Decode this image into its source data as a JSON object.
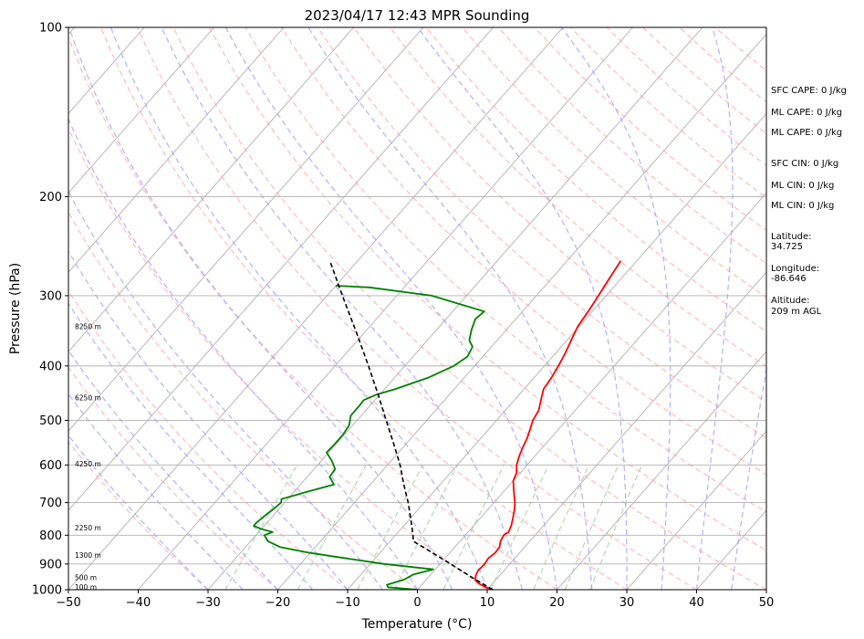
{
  "chart_data": {
    "type": "line",
    "chart_kind": "Skew-T log-P sounding",
    "title": "2023/04/17 12:43 MPR Sounding",
    "xlabel": "Temperature (°C)",
    "ylabel": "Pressure (hPa)",
    "xlim": [
      -50,
      50
    ],
    "ylim": [
      1000,
      100
    ],
    "y_scale": "log",
    "x_ticks": [
      -50,
      -40,
      -30,
      -20,
      -10,
      0,
      10,
      20,
      30,
      40,
      50
    ],
    "x_tick_labels": [
      "−50",
      "−40",
      "−30",
      "−20",
      "−10",
      "0",
      "10",
      "20",
      "30",
      "40",
      "50"
    ],
    "y_ticks": [
      1000,
      900,
      800,
      700,
      600,
      500,
      400,
      300,
      200,
      100
    ],
    "y_tick_labels": [
      "1000",
      "900",
      "800",
      "700",
      "600",
      "500",
      "400",
      "300",
      "200",
      "100"
    ],
    "series": [
      {
        "role": "temperature",
        "color": "#ff0000",
        "points": [
          [
            1000,
            10.8
          ],
          [
            990,
            9.5
          ],
          [
            975,
            8.0
          ],
          [
            960,
            7.0
          ],
          [
            940,
            6.5
          ],
          [
            925,
            6.3
          ],
          [
            900,
            6.4
          ],
          [
            880,
            6.2
          ],
          [
            860,
            6.5
          ],
          [
            840,
            6.4
          ],
          [
            820,
            5.8
          ],
          [
            800,
            5.5
          ],
          [
            790,
            5.8
          ],
          [
            770,
            5.4
          ],
          [
            750,
            4.8
          ],
          [
            720,
            3.8
          ],
          [
            700,
            3.0
          ],
          [
            680,
            2.0
          ],
          [
            660,
            1.0
          ],
          [
            640,
            0.0
          ],
          [
            620,
            -0.5
          ],
          [
            600,
            -1.5
          ],
          [
            580,
            -2.2
          ],
          [
            560,
            -2.8
          ],
          [
            540,
            -3.3
          ],
          [
            520,
            -4.0
          ],
          [
            500,
            -4.8
          ],
          [
            480,
            -5.2
          ],
          [
            460,
            -6.2
          ],
          [
            440,
            -7.2
          ],
          [
            420,
            -7.5
          ],
          [
            400,
            -8.0
          ],
          [
            380,
            -8.6
          ],
          [
            360,
            -9.4
          ],
          [
            340,
            -10.2
          ],
          [
            320,
            -10.6
          ],
          [
            300,
            -11.1
          ],
          [
            280,
            -11.7
          ],
          [
            260,
            -12.3
          ]
        ]
      },
      {
        "role": "dewpoint",
        "color": "#008000",
        "points": [
          [
            1000,
            0.0
          ],
          [
            990,
            -4.5
          ],
          [
            980,
            -5.0
          ],
          [
            960,
            -3.2
          ],
          [
            940,
            -2.5
          ],
          [
            920,
            -0.3
          ],
          [
            900,
            -8.0
          ],
          [
            880,
            -14.0
          ],
          [
            860,
            -20.0
          ],
          [
            840,
            -25.0
          ],
          [
            820,
            -27.5
          ],
          [
            800,
            -28.8
          ],
          [
            790,
            -28.0
          ],
          [
            780,
            -30.0
          ],
          [
            770,
            -31.5
          ],
          [
            760,
            -31.5
          ],
          [
            740,
            -31.2
          ],
          [
            720,
            -30.8
          ],
          [
            700,
            -30.5
          ],
          [
            690,
            -30.9
          ],
          [
            670,
            -28.2
          ],
          [
            650,
            -25.2
          ],
          [
            630,
            -26.8
          ],
          [
            610,
            -27.0
          ],
          [
            590,
            -28.5
          ],
          [
            570,
            -30.3
          ],
          [
            550,
            -30.2
          ],
          [
            530,
            -30.2
          ],
          [
            510,
            -30.5
          ],
          [
            490,
            -31.5
          ],
          [
            470,
            -31.5
          ],
          [
            460,
            -31.6
          ],
          [
            450,
            -30.5
          ],
          [
            440,
            -28.5
          ],
          [
            420,
            -25.2
          ],
          [
            400,
            -23.0
          ],
          [
            385,
            -22.2
          ],
          [
            370,
            -22.7
          ],
          [
            360,
            -24.0
          ],
          [
            345,
            -25.0
          ],
          [
            330,
            -25.8
          ],
          [
            320,
            -25.5
          ],
          [
            300,
            -35.0
          ],
          [
            290,
            -45.0
          ],
          [
            288,
            -50.0
          ]
        ]
      },
      {
        "role": "parcel",
        "color": "#000000",
        "style": "dashed",
        "points": [
          [
            1000,
            10.8
          ],
          [
            950,
            6.2
          ],
          [
            900,
            1.5
          ],
          [
            850,
            -3.5
          ],
          [
            820,
            -6.7
          ],
          [
            800,
            -7.5
          ],
          [
            750,
            -9.8
          ],
          [
            700,
            -12.3
          ],
          [
            650,
            -15.2
          ],
          [
            600,
            -18.2
          ],
          [
            550,
            -21.8
          ],
          [
            500,
            -25.8
          ],
          [
            450,
            -30.2
          ],
          [
            400,
            -35.2
          ],
          [
            350,
            -41.0
          ],
          [
            300,
            -47.8
          ],
          [
            260,
            -54.0
          ]
        ]
      }
    ],
    "height_labels": [
      {
        "text": "100 m",
        "p": 989
      },
      {
        "text": "500 m",
        "p": 951
      },
      {
        "text": "1300 m",
        "p": 867
      },
      {
        "text": "2250 m",
        "p": 776
      },
      {
        "text": "4250 m",
        "p": 597
      },
      {
        "text": "6250 m",
        "p": 455
      },
      {
        "text": "8250 m",
        "p": 340
      }
    ],
    "background_lines": {
      "isotherms": {
        "color": "#b0b0b0"
      },
      "dry_adiabats": {
        "color": "#ff9e9e",
        "style": "dashed"
      },
      "moist_adiabats": {
        "color": "#9e9eff",
        "style": "dashed"
      },
      "mixing_ratio": {
        "color": "#9ed09e",
        "style": "dashed"
      }
    },
    "grid": true
  },
  "annotations": {
    "sfc_cape": "SFC CAPE: 0 J/kg",
    "ml_cape": "ML CAPE: 0 J/kg",
    "mu_cape": "ML CAPE: 0 J/kg",
    "sfc_cin": "SFC CIN: 0 J/kg",
    "ml_cin": "ML CIN: 0 J/kg",
    "mu_cin": "ML CIN: 0 J/kg",
    "lat_label": "Latitude:",
    "lat_value": "34.725",
    "lon_label": "Longitude:",
    "lon_value": "-86.646",
    "alt_label": "Altitude:",
    "alt_value": "209 m AGL"
  }
}
